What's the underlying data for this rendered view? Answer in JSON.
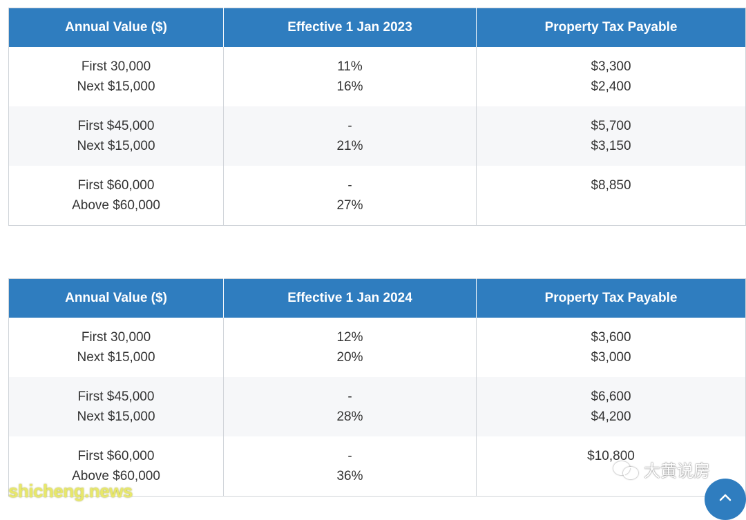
{
  "tables": [
    {
      "headers": [
        "Annual Value ($)",
        "Effective 1 Jan 2023",
        "Property Tax Payable"
      ],
      "rows": [
        {
          "annual_value": [
            "First 30,000",
            "Next $15,000"
          ],
          "rate": [
            "11%",
            "16%"
          ],
          "tax_payable": [
            "$3,300",
            "$2,400"
          ]
        },
        {
          "annual_value": [
            "First $45,000",
            "Next $15,000"
          ],
          "rate": [
            "-",
            "21%"
          ],
          "tax_payable": [
            "$5,700",
            "$3,150"
          ]
        },
        {
          "annual_value": [
            "First $60,000",
            "Above $60,000"
          ],
          "rate": [
            "-",
            "27%"
          ],
          "tax_payable": [
            "$8,850",
            ""
          ]
        }
      ]
    },
    {
      "headers": [
        "Annual Value ($)",
        "Effective 1 Jan 2024",
        "Property Tax Payable"
      ],
      "rows": [
        {
          "annual_value": [
            "First 30,000",
            "Next $15,000"
          ],
          "rate": [
            "12%",
            "20%"
          ],
          "tax_payable": [
            "$3,600",
            "$3,000"
          ]
        },
        {
          "annual_value": [
            "First $45,000",
            "Next $15,000"
          ],
          "rate": [
            "-",
            "28%"
          ],
          "tax_payable": [
            "$6,600",
            "$4,200"
          ]
        },
        {
          "annual_value": [
            "First $60,000",
            "Above $60,000"
          ],
          "rate": [
            "-",
            "36%"
          ],
          "tax_payable": [
            "$10,800",
            ""
          ]
        }
      ]
    }
  ],
  "watermarks": {
    "left": "shicheng.news",
    "right": "大黄说房",
    "right_icon": "wechat-icon"
  },
  "scroll_top": {
    "icon": "chevron-up-icon"
  },
  "colors": {
    "header_bg": "#2f7dbf",
    "alt_row_bg": "#f6f7f9",
    "border": "#cfd3d8"
  }
}
